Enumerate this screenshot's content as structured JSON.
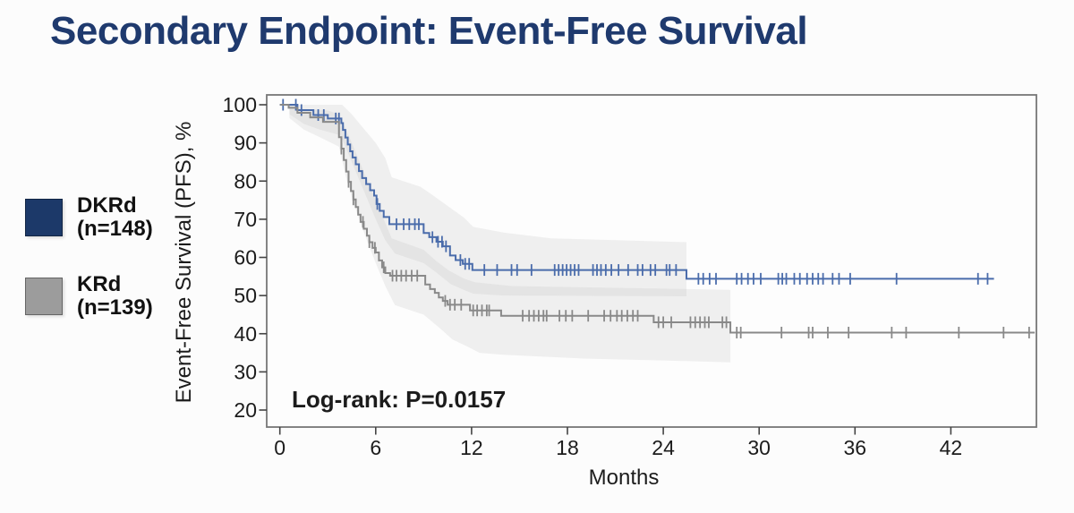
{
  "title": "Secondary Endpoint: Event-Free Survival",
  "colors": {
    "title_navy": "#1f3a6e",
    "dkrd_line": "#4a6cab",
    "krd_line": "#898989",
    "dkrd_swatch": "#1c3969",
    "krd_swatch": "#9c9c9c",
    "band_fill": "#bdbdbd",
    "axis_line": "#777777",
    "tick_line": "#444444"
  },
  "legend": [
    {
      "label": "DKRd",
      "n_label": "(n=148)",
      "color": "#1c3969"
    },
    {
      "label": "KRd",
      "n_label": "(n=139)",
      "color": "#9c9c9c"
    }
  ],
  "chart_data": {
    "type": "line",
    "subtype": "kaplan-meier-step",
    "xlabel": "Months",
    "ylabel": "Event-Free Survival (PFS), %",
    "annotation": "Log-rank: P=0.0157",
    "xlim": [
      0,
      47.3
    ],
    "ylim": [
      15.5,
      102.5
    ],
    "xticks": [
      0,
      6,
      12,
      18,
      24,
      30,
      36,
      42
    ],
    "yticks": [
      100,
      90,
      80,
      70,
      60,
      50,
      40,
      30,
      20
    ],
    "grid": false,
    "legend_position": "outside-left",
    "series": [
      {
        "name": "DKRd",
        "n": 148,
        "color": "#4a6cab",
        "end_month": 44.7,
        "steps": [
          [
            0,
            100
          ],
          [
            1.1,
            98.6
          ],
          [
            2.1,
            97.3
          ],
          [
            3.0,
            96.4
          ],
          [
            3.85,
            95.2
          ],
          [
            3.95,
            93.4
          ],
          [
            4.1,
            91.4
          ],
          [
            4.25,
            89.6
          ],
          [
            4.4,
            87.8
          ],
          [
            4.55,
            86.2
          ],
          [
            4.75,
            84.4
          ],
          [
            4.95,
            82.6
          ],
          [
            5.15,
            80.8
          ],
          [
            5.4,
            79.2
          ],
          [
            5.65,
            77.6
          ],
          [
            5.9,
            76.2
          ],
          [
            6.05,
            74.0
          ],
          [
            6.25,
            72.2
          ],
          [
            6.5,
            70.6
          ],
          [
            6.85,
            68.7
          ],
          [
            9.0,
            66.4
          ],
          [
            9.35,
            65.3
          ],
          [
            9.8,
            64.1
          ],
          [
            10.2,
            62.9
          ],
          [
            10.65,
            60.5
          ],
          [
            11.0,
            59.3
          ],
          [
            11.45,
            58.3
          ],
          [
            12.05,
            56.7
          ],
          [
            25.45,
            54.4
          ]
        ],
        "censor_months": [
          0.2,
          1.0,
          1.35,
          2.4,
          2.75,
          3.5,
          3.7,
          6.1,
          7.3,
          7.75,
          8.1,
          8.45,
          8.7,
          9.55,
          9.9,
          10.15,
          10.4,
          11.3,
          11.6,
          11.85,
          12.8,
          13.6,
          14.5,
          14.85,
          15.75,
          17.2,
          17.45,
          17.7,
          17.95,
          18.2,
          18.45,
          18.7,
          19.6,
          19.85,
          20.1,
          20.4,
          20.75,
          21.2,
          21.8,
          22.4,
          22.7,
          23.2,
          23.5,
          24.2,
          24.4,
          24.8,
          26.2,
          26.5,
          26.9,
          27.3,
          28.6,
          28.9,
          29.3,
          29.65,
          30.1,
          31.2,
          31.45,
          31.7,
          32.2,
          32.55,
          33.0,
          33.35,
          33.7,
          34.0,
          34.6,
          35.0,
          35.7,
          38.6,
          43.7,
          44.3
        ],
        "band": {
          "upper": [
            [
              0.6,
              100
            ],
            [
              3.9,
              100
            ],
            [
              4.5,
              97.5
            ],
            [
              5.2,
              94
            ],
            [
              6.0,
              90
            ],
            [
              6.6,
              86
            ],
            [
              7.0,
              81
            ],
            [
              8.8,
              78.5
            ],
            [
              9.5,
              76.5
            ],
            [
              10.5,
              73.5
            ],
            [
              11.5,
              70.5
            ],
            [
              12.1,
              68
            ],
            [
              14,
              66.5
            ],
            [
              17,
              65
            ],
            [
              25.45,
              64
            ]
          ],
          "lower": [
            [
              0.6,
              97.5
            ],
            [
              1.5,
              95
            ],
            [
              2.5,
              93.5
            ],
            [
              3.8,
              92
            ],
            [
              4.2,
              88
            ],
            [
              4.8,
              82
            ],
            [
              5.4,
              76
            ],
            [
              6.0,
              70
            ],
            [
              6.6,
              64.5
            ],
            [
              7.2,
              61
            ],
            [
              9.0,
              58.5
            ],
            [
              9.8,
              56
            ],
            [
              10.7,
              53
            ],
            [
              11.5,
              51.5
            ],
            [
              12.1,
              50.5
            ],
            [
              14,
              50
            ],
            [
              25.45,
              49.8
            ]
          ]
        }
      },
      {
        "name": "KRd",
        "n": 139,
        "color": "#898989",
        "end_month": 47.25,
        "steps": [
          [
            0,
            100
          ],
          [
            0.55,
            99.2
          ],
          [
            1.1,
            97.9
          ],
          [
            1.9,
            96.7
          ],
          [
            2.7,
            95.5
          ],
          [
            3.7,
            91.5
          ],
          [
            3.85,
            88.5
          ],
          [
            4.0,
            85.5
          ],
          [
            4.15,
            82.5
          ],
          [
            4.3,
            79.8
          ],
          [
            4.45,
            77.4
          ],
          [
            4.6,
            75.2
          ],
          [
            4.75,
            73.2
          ],
          [
            4.9,
            71.2
          ],
          [
            5.05,
            69.3
          ],
          [
            5.25,
            67.5
          ],
          [
            5.45,
            65.7
          ],
          [
            5.6,
            64.0
          ],
          [
            5.8,
            62.5
          ],
          [
            6.0,
            61.3
          ],
          [
            6.2,
            59.2
          ],
          [
            6.4,
            57.4
          ],
          [
            6.6,
            55.9
          ],
          [
            6.9,
            55.2
          ],
          [
            9.1,
            52.9
          ],
          [
            9.4,
            51.7
          ],
          [
            9.7,
            50.7
          ],
          [
            9.95,
            49.5
          ],
          [
            10.2,
            48.6
          ],
          [
            10.5,
            47.6
          ],
          [
            11.9,
            46.1
          ],
          [
            13.85,
            44.7
          ],
          [
            23.4,
            43.0
          ],
          [
            28.2,
            40.3
          ]
        ],
        "censor_months": [
          3.85,
          4.3,
          4.6,
          5.2,
          5.6,
          5.95,
          6.5,
          7.05,
          7.3,
          7.6,
          7.9,
          8.25,
          8.6,
          10.35,
          10.65,
          10.95,
          11.35,
          12.1,
          12.35,
          12.65,
          12.95,
          13.1,
          15.2,
          15.6,
          15.9,
          16.2,
          16.5,
          16.7,
          17.5,
          17.9,
          18.3,
          19.3,
          20.3,
          20.7,
          21.1,
          21.4,
          21.75,
          22.1,
          22.4,
          23.7,
          24.0,
          24.5,
          25.7,
          26.0,
          26.3,
          26.6,
          26.85,
          27.7,
          27.95,
          28.6,
          28.85,
          31.4,
          33.1,
          33.35,
          34.3,
          35.6,
          38.3,
          39.2,
          42.5,
          45.3,
          46.9
        ],
        "band": {
          "upper": [
            [
              0.6,
              100
            ],
            [
              1.2,
              99
            ],
            [
              3.0,
              98.5
            ],
            [
              3.7,
              97.5
            ],
            [
              4.2,
              93
            ],
            [
              4.8,
              87
            ],
            [
              5.4,
              81
            ],
            [
              6.0,
              75
            ],
            [
              6.5,
              70
            ],
            [
              7.0,
              65
            ],
            [
              9.0,
              62
            ],
            [
              9.8,
              59
            ],
            [
              10.6,
              56.5
            ],
            [
              11.5,
              54.5
            ],
            [
              12.2,
              53.5
            ],
            [
              14.5,
              52.5
            ],
            [
              28.2,
              51.5
            ]
          ],
          "lower": [
            [
              0.6,
              96.5
            ],
            [
              1.5,
              93.5
            ],
            [
              2.5,
              91.5
            ],
            [
              3.7,
              89
            ],
            [
              4.2,
              80
            ],
            [
              4.8,
              72
            ],
            [
              5.4,
              65
            ],
            [
              6.0,
              58.5
            ],
            [
              6.6,
              52.5
            ],
            [
              7.2,
              47.5
            ],
            [
              9.0,
              45
            ],
            [
              10.0,
              41.5
            ],
            [
              10.8,
              38.5
            ],
            [
              11.8,
              36.5
            ],
            [
              12.5,
              35
            ],
            [
              14.0,
              34.5
            ],
            [
              19.0,
              33.5
            ],
            [
              24.0,
              33
            ],
            [
              28.2,
              32.5
            ]
          ]
        }
      }
    ]
  }
}
